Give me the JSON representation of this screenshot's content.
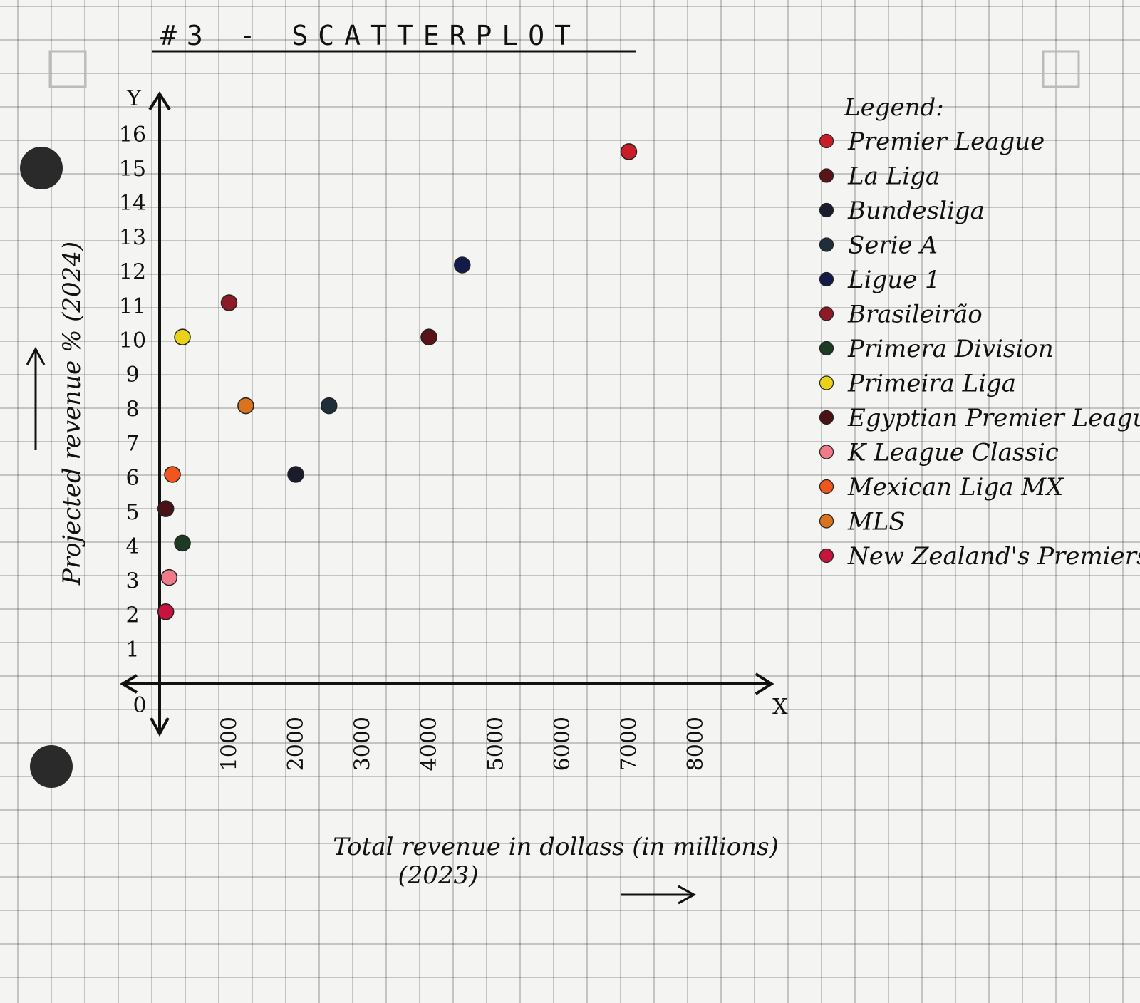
{
  "chart_data": {
    "type": "scatter",
    "title": "#3 - SCATTERPLOT",
    "xlabel": "Total revenue in dollass (in millions)",
    "xlabel_sub": "(2023)",
    "ylabel": "Projected revenue % (2024)",
    "x_axis_end_label": "X",
    "y_axis_end_label": "Y",
    "origin_label": "0",
    "xlim": [
      0,
      8500
    ],
    "ylim": [
      0,
      16.6
    ],
    "x_ticks": [
      1000,
      2000,
      3000,
      4000,
      5000,
      6000,
      7000,
      8000
    ],
    "y_ticks": [
      1,
      2,
      3,
      4,
      5,
      6,
      7,
      8,
      9,
      10,
      11,
      12,
      13,
      14,
      15,
      16
    ],
    "legend_title": "Legend:",
    "legend_position": "right",
    "series": [
      {
        "name": "Premier League",
        "color": "#c81e2a",
        "points": [
          {
            "x": 7000,
            "y": 15.5
          }
        ]
      },
      {
        "name": "La Liga",
        "color": "#5a1418",
        "points": [
          {
            "x": 4000,
            "y": 10.1
          }
        ]
      },
      {
        "name": "Bundesliga",
        "color": "#1a1c2e",
        "points": [
          {
            "x": 2000,
            "y": 6.1
          }
        ]
      },
      {
        "name": "Serie A",
        "color": "#1e2e3a",
        "points": [
          {
            "x": 2500,
            "y": 8.1
          }
        ]
      },
      {
        "name": "Ligue 1",
        "color": "#141b4a",
        "points": [
          {
            "x": 4500,
            "y": 12.2
          }
        ]
      },
      {
        "name": "Brasileirão",
        "color": "#8e1a26",
        "points": [
          {
            "x": 1000,
            "y": 11.1
          }
        ]
      },
      {
        "name": "Primera Division",
        "color": "#1d3a24",
        "points": [
          {
            "x": 300,
            "y": 4.1
          }
        ]
      },
      {
        "name": "Primeira Liga",
        "color": "#e8d21a",
        "points": [
          {
            "x": 300,
            "y": 10.1
          }
        ]
      },
      {
        "name": "Egyptian Premier League",
        "color": "#4a1216",
        "points": [
          {
            "x": 50,
            "y": 5.1
          }
        ]
      },
      {
        "name": "K League Classic",
        "color": "#f07a88",
        "points": [
          {
            "x": 100,
            "y": 3.1
          }
        ]
      },
      {
        "name": "Mexican Liga MX",
        "color": "#f2561e",
        "points": [
          {
            "x": 150,
            "y": 6.1
          }
        ]
      },
      {
        "name": "MLS",
        "color": "#d9731e",
        "points": [
          {
            "x": 1250,
            "y": 8.1
          }
        ]
      },
      {
        "name": "New Zealand's Premiership",
        "color": "#c8143c",
        "points": [
          {
            "x": 50,
            "y": 2.1
          }
        ]
      }
    ]
  }
}
